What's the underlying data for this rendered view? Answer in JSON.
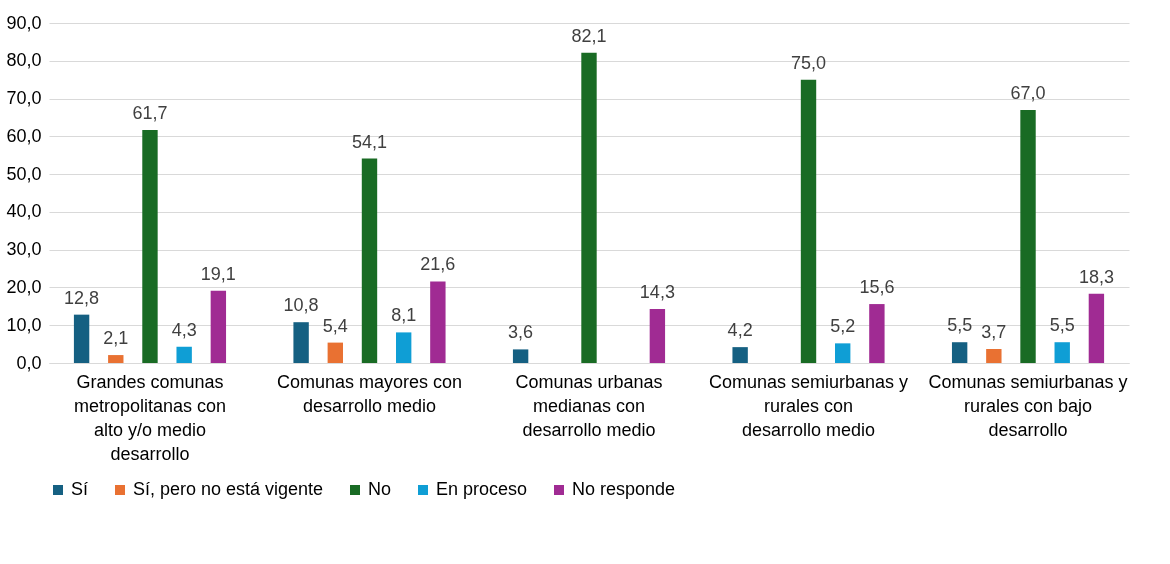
{
  "chart_data": {
    "type": "bar",
    "categories": [
      "Grandes comunas metropolitanas con alto y/o medio desarrollo",
      "Comunas mayores con desarrollo medio",
      "Comunas urbanas medianas con desarrollo medio",
      "Comunas semiurbanas y rurales con desarrollo medio",
      "Comunas semiurbanas y rurales con bajo desarrollo"
    ],
    "series": [
      {
        "name": "Sí",
        "color": "#156082",
        "values": [
          12.8,
          10.8,
          3.6,
          4.2,
          5.5
        ],
        "value_labels": [
          "12,8",
          "10,8",
          "3,6",
          "4,2",
          "5,5"
        ]
      },
      {
        "name": "Sí, pero no está vigente",
        "color": "#e97132",
        "values": [
          2.1,
          5.4,
          null,
          null,
          3.7
        ],
        "value_labels": [
          "2,1",
          "5,4",
          null,
          null,
          "3,7"
        ]
      },
      {
        "name": "No",
        "color": "#196b24",
        "values": [
          61.7,
          54.1,
          82.1,
          75.0,
          67.0
        ],
        "value_labels": [
          "61,7",
          "54,1",
          "82,1",
          "75,0",
          "67,0"
        ]
      },
      {
        "name": "En proceso",
        "color": "#0f9ed5",
        "values": [
          4.3,
          8.1,
          null,
          5.2,
          5.5
        ],
        "value_labels": [
          "4,3",
          "8,1",
          null,
          "5,2",
          "5,5"
        ]
      },
      {
        "name": "No responde",
        "color": "#a02b93",
        "values": [
          19.1,
          21.6,
          14.3,
          15.6,
          18.3
        ],
        "value_labels": [
          "19,1",
          "21,6",
          "14,3",
          "15,6",
          "18,3"
        ]
      }
    ],
    "ylim": [
      0,
      90
    ],
    "yticks": [
      {
        "value": 0,
        "label": "0,0"
      },
      {
        "value": 10,
        "label": "10,0"
      },
      {
        "value": 20,
        "label": "20,0"
      },
      {
        "value": 30,
        "label": "30,0"
      },
      {
        "value": 40,
        "label": "40,0"
      },
      {
        "value": 50,
        "label": "50,0"
      },
      {
        "value": 60,
        "label": "60,0"
      },
      {
        "value": 70,
        "label": "70,0"
      },
      {
        "value": 80,
        "label": "80,0"
      },
      {
        "value": 90,
        "label": "90,0"
      }
    ],
    "grid": "y",
    "legend": "bottom"
  }
}
